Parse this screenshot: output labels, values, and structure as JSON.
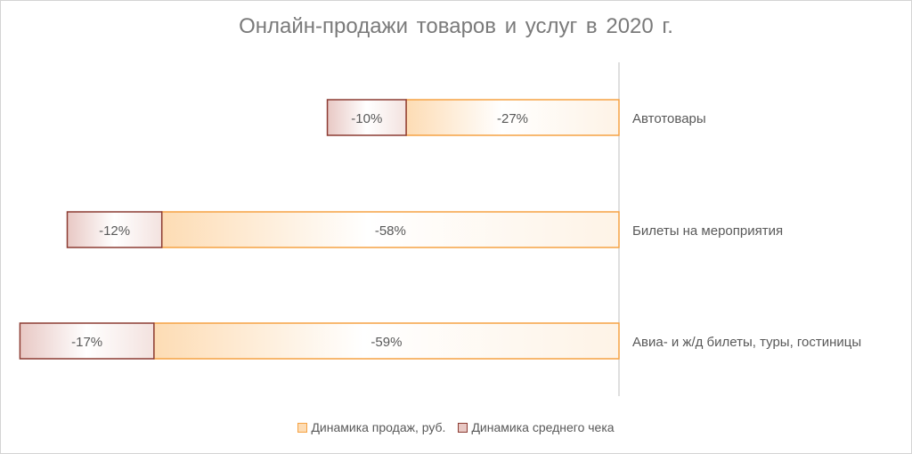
{
  "colors": {
    "sales_fill": "#fddcb4",
    "sales_stroke": "#f5a243",
    "check_fill": "#e8c8c4",
    "check_stroke": "#8c3b32",
    "axis": "#bfbfbf",
    "text": "#595959"
  },
  "chart_data": {
    "type": "bar",
    "orientation": "horizontal",
    "stacked": true,
    "title": "Онлайн-продажи товаров и услуг в 2020 г.",
    "categories": [
      "Автотовары",
      "Билеты на мероприятия",
      "Авиа- и ж/д билеты, туры, гостиницы"
    ],
    "series": [
      {
        "name": "Динамика продаж, руб.",
        "values": [
          -27,
          -58,
          -59
        ],
        "labels": [
          "-27%",
          "-58%",
          "-59%"
        ]
      },
      {
        "name": "Динамика среднего чека",
        "values": [
          -10,
          -12,
          -17
        ],
        "labels": [
          "-10%",
          "-12%",
          "-17%"
        ]
      }
    ],
    "legend": "bottom",
    "grid": false
  }
}
